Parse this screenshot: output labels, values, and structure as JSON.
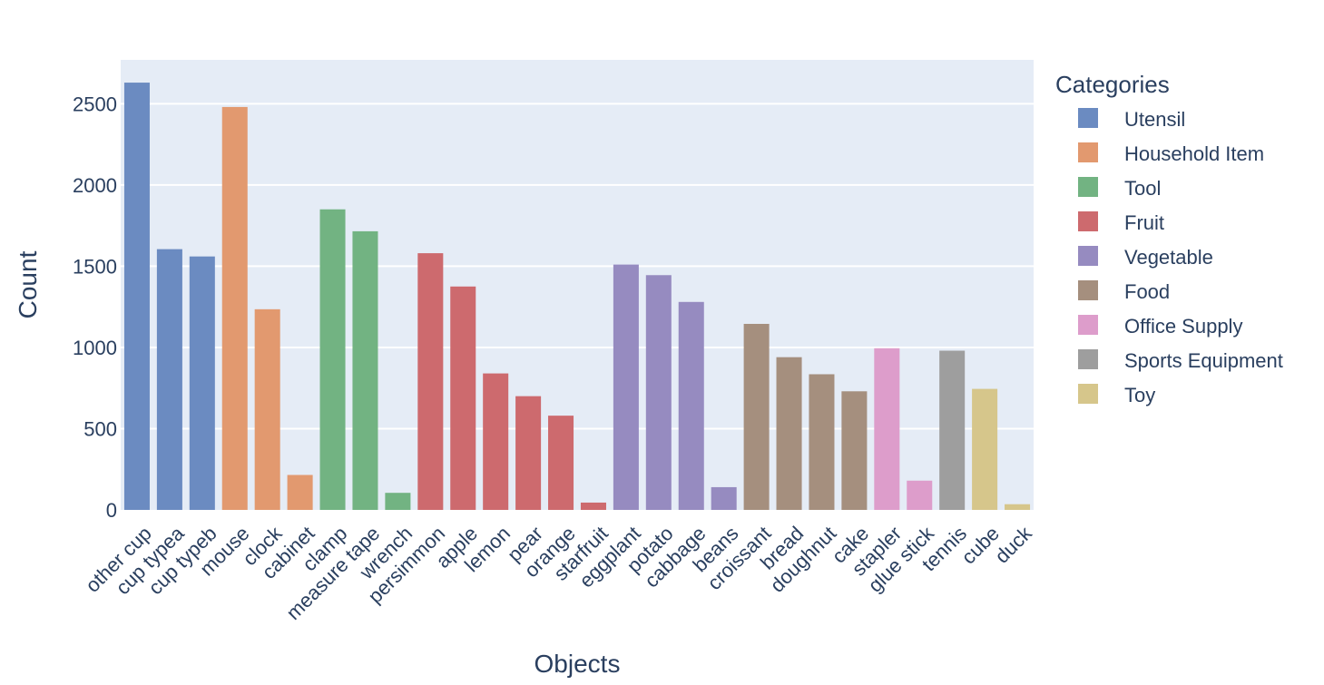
{
  "chart_data": {
    "type": "bar",
    "xlabel": "Objects",
    "ylabel": "Count",
    "ylim": [
      0,
      2770
    ],
    "yticks": [
      0,
      500,
      1000,
      1500,
      2000,
      2500
    ],
    "grid": true,
    "legend": {
      "title": "Categories",
      "position": "right"
    },
    "background_color": "#e5ecf6",
    "categories": [
      "other cup",
      "cup typea",
      "cup typeb",
      "mouse",
      "clock",
      "cabinet",
      "clamp",
      "measure tape",
      "wrench",
      "persimmon",
      "apple",
      "lemon",
      "pear",
      "orange",
      "starfruit",
      "eggplant",
      "potato",
      "cabbage",
      "beans",
      "croissant",
      "bread",
      "doughnut",
      "cake",
      "stapler",
      "glue stick",
      "tennis",
      "cube",
      "duck"
    ],
    "values": [
      2630,
      1605,
      1560,
      2480,
      1235,
      215,
      1850,
      1715,
      105,
      1580,
      1375,
      840,
      700,
      580,
      45,
      1510,
      1445,
      1280,
      140,
      1145,
      940,
      835,
      730,
      995,
      180,
      980,
      745,
      35
    ],
    "bar_category": [
      "Utensil",
      "Utensil",
      "Utensil",
      "Household Item",
      "Household Item",
      "Household Item",
      "Tool",
      "Tool",
      "Tool",
      "Fruit",
      "Fruit",
      "Fruit",
      "Fruit",
      "Fruit",
      "Fruit",
      "Vegetable",
      "Vegetable",
      "Vegetable",
      "Vegetable",
      "Food",
      "Food",
      "Food",
      "Food",
      "Office Supply",
      "Office Supply",
      "Sports Equipment",
      "Toy",
      "Toy"
    ],
    "series": [
      {
        "name": "Utensil",
        "color": "#6b8bc1"
      },
      {
        "name": "Household Item",
        "color": "#e2996f"
      },
      {
        "name": "Tool",
        "color": "#72b382"
      },
      {
        "name": "Fruit",
        "color": "#cd6a6e"
      },
      {
        "name": "Vegetable",
        "color": "#968bc0"
      },
      {
        "name": "Food",
        "color": "#a58f7e"
      },
      {
        "name": "Office Supply",
        "color": "#dd9dcb"
      },
      {
        "name": "Sports Equipment",
        "color": "#9e9e9e"
      },
      {
        "name": "Toy",
        "color": "#d6c68b"
      }
    ]
  }
}
